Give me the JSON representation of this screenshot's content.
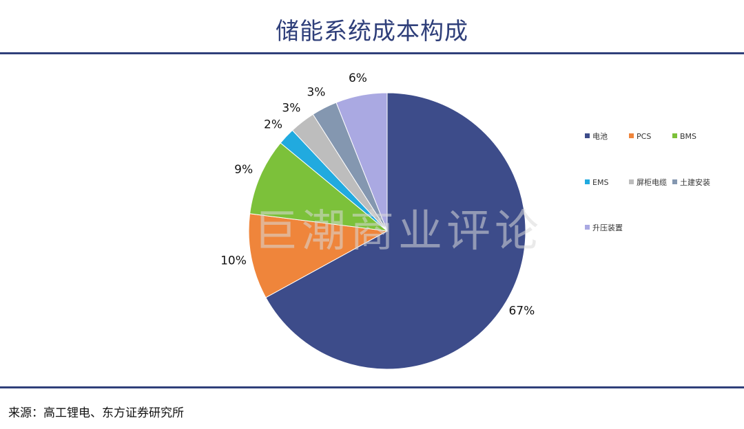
{
  "title": "储能系统成本构成",
  "source": "来源：高工锂电、东方证券研究所",
  "watermark": "巨潮商业评论",
  "chart_data": {
    "type": "pie",
    "title": "储能系统成本构成",
    "slices": [
      {
        "label": "电池",
        "value": 67,
        "display": "67%",
        "color": "#3d4c8a"
      },
      {
        "label": "PCS",
        "value": 10,
        "display": "10%",
        "color": "#ef853b"
      },
      {
        "label": "BMS",
        "value": 9,
        "display": "9%",
        "color": "#7cc13a"
      },
      {
        "label": "EMS",
        "value": 2,
        "display": "2%",
        "color": "#21aadf"
      },
      {
        "label": "屏柜电缆",
        "value": 3,
        "display": "3%",
        "color": "#bdbdbd"
      },
      {
        "label": "土建安装",
        "value": 3,
        "display": "3%",
        "color": "#8497b0"
      },
      {
        "label": "升压装置",
        "value": 6,
        "display": "6%",
        "color": "#aaa9e2"
      }
    ],
    "legend_placement": "right"
  }
}
